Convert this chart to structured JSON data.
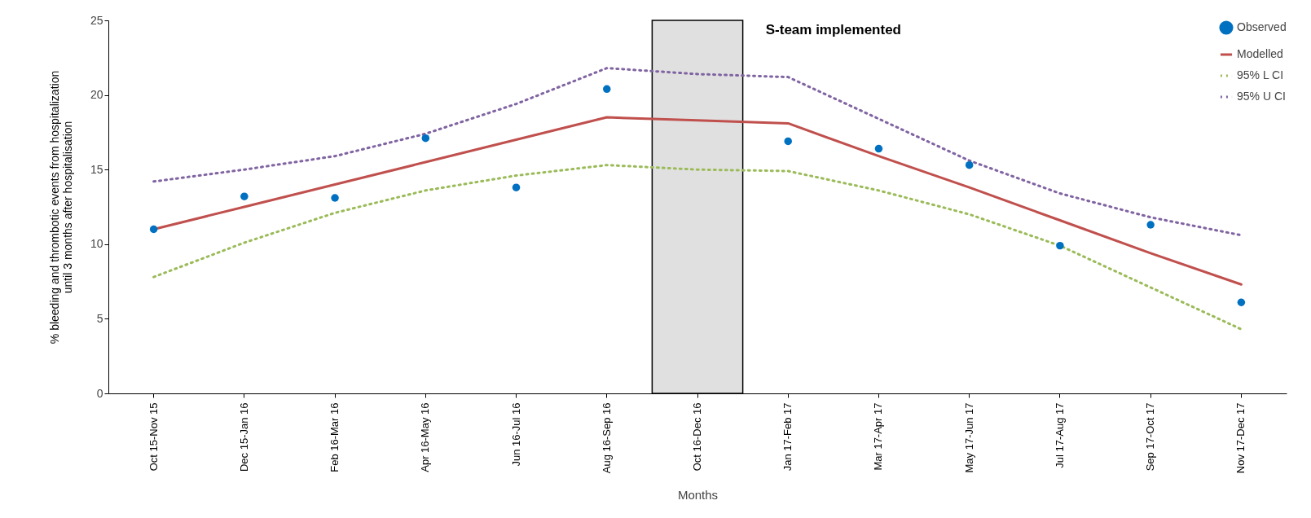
{
  "chart_data": {
    "type": "line",
    "categories": [
      "Oct 15-Nov 15",
      "Dec 15-Jan 16",
      "Feb 16-Mar 16",
      "Apr 16-May 16",
      "Jun 16-Jul 16",
      "Aug 16-Sep 16",
      "Oct 16-Dec 16",
      "Jan 17-Feb 17",
      "Mar 17-Apr 17",
      "May 17-Jun 17",
      "Jul 17-Aug 17",
      "Sep 17-Oct 17",
      "Nov 17-Dec 17"
    ],
    "series": [
      {
        "name": "Observed",
        "type": "scatter",
        "marker": "circle",
        "color": "#0070c0",
        "values": [
          11.0,
          13.2,
          13.1,
          17.1,
          13.8,
          20.4,
          null,
          16.9,
          16.4,
          15.3,
          9.9,
          11.3,
          6.1
        ]
      },
      {
        "name": "Modelled",
        "type": "line",
        "line_style": "solid",
        "color": "#c0504d",
        "values": [
          11.0,
          12.5,
          14.0,
          15.5,
          17.0,
          18.5,
          18.3,
          18.1,
          15.9,
          13.8,
          11.6,
          9.4,
          7.3
        ]
      },
      {
        "name": "95% L CI",
        "type": "line",
        "line_style": "dotted",
        "color": "#9bbb59",
        "values": [
          7.8,
          10.1,
          12.1,
          13.6,
          14.6,
          15.3,
          15.0,
          14.9,
          13.6,
          12.0,
          9.9,
          7.1,
          4.3
        ]
      },
      {
        "name": "95% U CI",
        "type": "line",
        "line_style": "dotted",
        "color": "#8064a2",
        "values": [
          14.2,
          15.0,
          15.9,
          17.4,
          19.4,
          21.8,
          21.4,
          21.2,
          18.4,
          15.6,
          13.4,
          11.8,
          10.6
        ]
      }
    ],
    "xlabel": "Months",
    "ylabel": "% bleeding and thrombotic events from hospitalization\nuntil 3 months after hospitalisation",
    "ylim": [
      0,
      25
    ],
    "yticks": [
      0,
      5,
      10,
      15,
      20,
      25
    ],
    "bands": [
      {
        "axis": "x",
        "from": "Oct 16-Dec 16",
        "to": "Oct 16-Dec 16",
        "color": "#e0e0e0"
      }
    ],
    "annotations": [
      "S-team implemented"
    ],
    "legend": "top right"
  }
}
